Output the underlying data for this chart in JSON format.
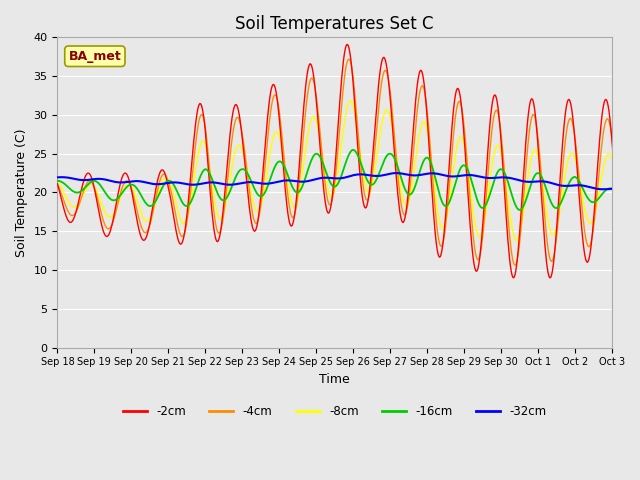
{
  "title": "Soil Temperatures Set C",
  "xlabel": "Time",
  "ylabel": "Soil Temperature (C)",
  "ylim": [
    0,
    40
  ],
  "yticks": [
    0,
    5,
    10,
    15,
    20,
    25,
    30,
    35,
    40
  ],
  "colors": {
    "-2cm": "#FF0000",
    "-4cm": "#FF8C00",
    "-8cm": "#FFFF00",
    "-16cm": "#00CC00",
    "-32cm": "#0000FF"
  },
  "legend_labels": [
    "-2cm",
    "-4cm",
    "-8cm",
    "-16cm",
    "-32cm"
  ],
  "annotation_text": "BA_met",
  "annotation_bg": "#FFFFAA",
  "annotation_border": "#999900",
  "background_color": "#E8E8E8",
  "title_fontsize": 12,
  "axis_label_fontsize": 9,
  "xtick_labels": [
    "Sep 18",
    "Sep 19",
    "Sep 20",
    "Sep 21",
    "Sep 22",
    "Sep 23",
    "Sep 24",
    "Sep 25",
    "Sep 26",
    "Sep 27",
    "Sep 28",
    "Sep 29",
    "Sep 30",
    "Oct 1",
    "Oct 2",
    "Oct 3"
  ],
  "n_days": 16,
  "daily_max_2cm": [
    22.5,
    22.5,
    22.5,
    23.0,
    33.0,
    31.0,
    34.5,
    37.0,
    39.5,
    37.0,
    35.5,
    33.0,
    32.5,
    32.0,
    32.0,
    32.0
  ],
  "daily_min_2cm": [
    17.0,
    14.5,
    14.0,
    13.5,
    13.0,
    15.0,
    15.0,
    17.0,
    18.0,
    18.0,
    12.5,
    10.0,
    9.5,
    8.0,
    11.0,
    11.0
  ],
  "daily_max_4cm": [
    21.5,
    21.5,
    21.5,
    22.5,
    31.0,
    29.5,
    33.0,
    35.0,
    37.5,
    35.5,
    33.5,
    31.5,
    30.5,
    30.0,
    29.5,
    29.5
  ],
  "daily_min_4cm": [
    18.0,
    15.5,
    15.0,
    14.5,
    14.0,
    16.0,
    16.0,
    18.0,
    19.0,
    19.0,
    14.0,
    11.5,
    11.0,
    10.0,
    13.0,
    13.0
  ],
  "daily_max_8cm": [
    21.5,
    21.0,
    21.0,
    22.0,
    27.0,
    26.0,
    28.0,
    30.0,
    32.0,
    30.5,
    29.0,
    27.0,
    26.0,
    25.5,
    25.0,
    25.0
  ],
  "daily_min_8cm": [
    19.0,
    17.0,
    16.5,
    16.0,
    16.0,
    17.5,
    17.5,
    19.0,
    20.0,
    20.0,
    16.0,
    14.5,
    14.0,
    13.5,
    16.0,
    16.0
  ],
  "daily_max_16cm": [
    21.5,
    21.5,
    21.0,
    21.5,
    23.0,
    23.0,
    24.0,
    25.0,
    25.5,
    25.0,
    24.5,
    23.5,
    23.0,
    22.5,
    22.0,
    20.5
  ],
  "daily_min_16cm": [
    20.5,
    19.5,
    18.5,
    18.0,
    18.5,
    19.5,
    19.5,
    20.5,
    21.0,
    21.0,
    18.5,
    18.0,
    18.0,
    17.5,
    18.5,
    19.0
  ],
  "daily_max_32cm": [
    22.0,
    21.8,
    21.5,
    21.3,
    21.3,
    21.3,
    21.5,
    21.8,
    22.3,
    22.5,
    22.5,
    22.3,
    22.0,
    21.5,
    21.0,
    20.5
  ],
  "daily_min_32cm": [
    21.8,
    21.5,
    21.2,
    21.0,
    21.0,
    21.0,
    21.2,
    21.5,
    22.0,
    22.2,
    22.2,
    22.0,
    21.8,
    21.2,
    20.7,
    20.3
  ],
  "phase_hours": {
    "2cm": 14,
    "4cm": 15,
    "8cm": 16,
    "16cm": 18,
    "32cm": 22
  },
  "pts_per_day": 48
}
